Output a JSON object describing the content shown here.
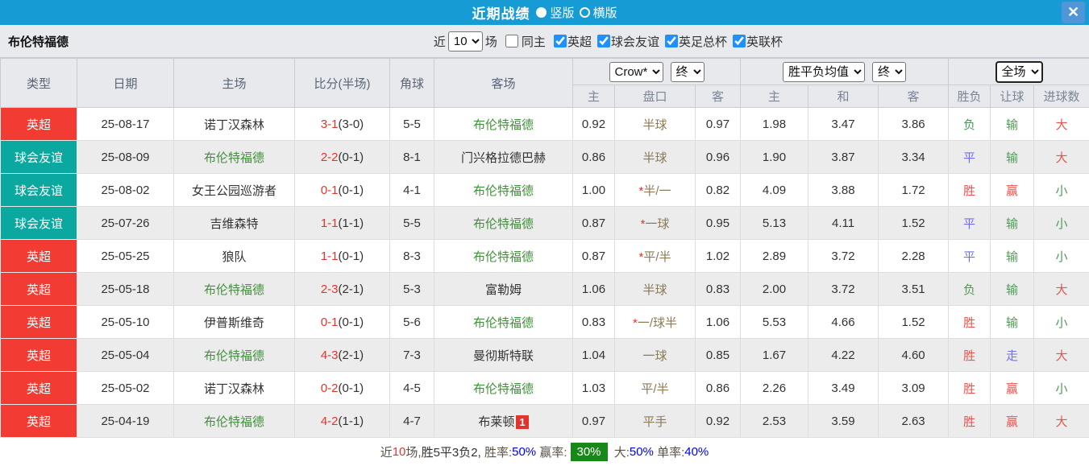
{
  "palette": {
    "titlebar_bg": "#169BD5",
    "close_btn_bg": "#4E96D8",
    "type_colors": {
      "epl": "#F13B33",
      "friendly": "#0AA89E"
    },
    "team_highlight_green": "#41903B",
    "score_red": "#E3342B",
    "result_red": "#E9534E",
    "result_green": "#4E9B57",
    "result_blue": "#7070EE",
    "odds_col_bg": "#FBF6EB",
    "avg_col_bg": "#EBF4F9",
    "footer_badge_green": "#188918",
    "footer_pct_blue": "#0000EE"
  },
  "titlebar": {
    "title": "近期战绩",
    "close_icon": "✕",
    "layout_options": [
      {
        "label": "竖版",
        "selected": true
      },
      {
        "label": "横版",
        "selected": false
      }
    ]
  },
  "toolbar": {
    "team": "布伦特福德",
    "recent_label": "近",
    "recent_value": "10",
    "matches_label": "场",
    "same_home": {
      "label": "同主",
      "checked": false
    },
    "leagues": [
      {
        "label": "英超",
        "checked": true
      },
      {
        "label": "球会友谊",
        "checked": true
      },
      {
        "label": "英足总杯",
        "checked": true
      },
      {
        "label": "英联杯",
        "checked": true
      }
    ]
  },
  "table": {
    "left_headers": [
      "类型",
      "日期",
      "主场",
      "比分(半场)",
      "角球",
      "客场"
    ],
    "odds_group": {
      "bookmaker": "Crow*",
      "time": "终",
      "subheaders": [
        "主",
        "盘口",
        "客"
      ]
    },
    "avg_group": {
      "name": "胜平负均值",
      "time": "终",
      "subheaders": [
        "主",
        "和",
        "客"
      ]
    },
    "result_group": {
      "scope": "全场",
      "subheaders": [
        "胜负",
        "让球",
        "进球数"
      ]
    },
    "rows": [
      {
        "type": "英超",
        "type_key": "epl",
        "date": "25-08-17",
        "home": "诺丁汉森林",
        "home_team": false,
        "score": "3-1",
        "half": "(3-0)",
        "corner": "5-5",
        "away": "布伦特福德",
        "away_team": true,
        "away_badge": null,
        "odds_home": "0.92",
        "handicap": "半球",
        "handicap_star": false,
        "odds_away": "0.97",
        "avg_home": "1.98",
        "avg_draw": "3.47",
        "avg_away": "3.86",
        "result": "负",
        "result_key": "green",
        "let_result": "输",
        "let_key": "green",
        "goals": "大",
        "goals_key": "red"
      },
      {
        "type": "球会友谊",
        "type_key": "friendly",
        "date": "25-08-09",
        "home": "布伦特福德",
        "home_team": true,
        "score": "2-2",
        "half": "(0-1)",
        "corner": "8-1",
        "away": "门兴格拉德巴赫",
        "away_team": false,
        "away_badge": null,
        "odds_home": "0.86",
        "handicap": "半球",
        "handicap_star": false,
        "odds_away": "0.96",
        "avg_home": "1.90",
        "avg_draw": "3.87",
        "avg_away": "3.34",
        "result": "平",
        "result_key": "blue",
        "let_result": "输",
        "let_key": "green",
        "goals": "大",
        "goals_key": "red"
      },
      {
        "type": "球会友谊",
        "type_key": "friendly",
        "date": "25-08-02",
        "home": "女王公园巡游者",
        "home_team": false,
        "score": "0-1",
        "half": "(0-1)",
        "corner": "4-1",
        "away": "布伦特福德",
        "away_team": true,
        "away_badge": null,
        "odds_home": "1.00",
        "handicap": "半/一",
        "handicap_star": true,
        "odds_away": "0.82",
        "avg_home": "4.09",
        "avg_draw": "3.88",
        "avg_away": "1.72",
        "result": "胜",
        "result_key": "red",
        "let_result": "赢",
        "let_key": "red",
        "goals": "小",
        "goals_key": "green"
      },
      {
        "type": "球会友谊",
        "type_key": "friendly",
        "date": "25-07-26",
        "home": "吉维森特",
        "home_team": false,
        "score": "1-1",
        "half": "(1-1)",
        "corner": "5-5",
        "away": "布伦特福德",
        "away_team": true,
        "away_badge": null,
        "odds_home": "0.87",
        "handicap": "一球",
        "handicap_star": true,
        "odds_away": "0.95",
        "avg_home": "5.13",
        "avg_draw": "4.11",
        "avg_away": "1.52",
        "result": "平",
        "result_key": "blue",
        "let_result": "输",
        "let_key": "green",
        "goals": "小",
        "goals_key": "green"
      },
      {
        "type": "英超",
        "type_key": "epl",
        "date": "25-05-25",
        "home": "狼队",
        "home_team": false,
        "score": "1-1",
        "half": "(0-1)",
        "corner": "8-3",
        "away": "布伦特福德",
        "away_team": true,
        "away_badge": null,
        "odds_home": "0.87",
        "handicap": "平/半",
        "handicap_star": true,
        "odds_away": "1.02",
        "avg_home": "2.89",
        "avg_draw": "3.72",
        "avg_away": "2.28",
        "result": "平",
        "result_key": "blue",
        "let_result": "输",
        "let_key": "green",
        "goals": "小",
        "goals_key": "green"
      },
      {
        "type": "英超",
        "type_key": "epl",
        "date": "25-05-18",
        "home": "布伦特福德",
        "home_team": true,
        "score": "2-3",
        "half": "(2-1)",
        "corner": "5-3",
        "away": "富勒姆",
        "away_team": false,
        "away_badge": null,
        "odds_home": "1.06",
        "handicap": "半球",
        "handicap_star": false,
        "odds_away": "0.83",
        "avg_home": "2.00",
        "avg_draw": "3.72",
        "avg_away": "3.51",
        "result": "负",
        "result_key": "green",
        "let_result": "输",
        "let_key": "green",
        "goals": "大",
        "goals_key": "red"
      },
      {
        "type": "英超",
        "type_key": "epl",
        "date": "25-05-10",
        "home": "伊普斯维奇",
        "home_team": false,
        "score": "0-1",
        "half": "(0-1)",
        "corner": "5-6",
        "away": "布伦特福德",
        "away_team": true,
        "away_badge": null,
        "odds_home": "0.83",
        "handicap": "一/球半",
        "handicap_star": true,
        "odds_away": "1.06",
        "avg_home": "5.53",
        "avg_draw": "4.66",
        "avg_away": "1.52",
        "result": "胜",
        "result_key": "red",
        "let_result": "输",
        "let_key": "green",
        "goals": "小",
        "goals_key": "green"
      },
      {
        "type": "英超",
        "type_key": "epl",
        "date": "25-05-04",
        "home": "布伦特福德",
        "home_team": true,
        "score": "4-3",
        "half": "(2-1)",
        "corner": "7-3",
        "away": "曼彻斯特联",
        "away_team": false,
        "away_badge": null,
        "odds_home": "1.04",
        "handicap": "一球",
        "handicap_star": false,
        "odds_away": "0.85",
        "avg_home": "1.67",
        "avg_draw": "4.22",
        "avg_away": "4.60",
        "result": "胜",
        "result_key": "red",
        "let_result": "走",
        "let_key": "blue",
        "goals": "大",
        "goals_key": "red"
      },
      {
        "type": "英超",
        "type_key": "epl",
        "date": "25-05-02",
        "home": "诺丁汉森林",
        "home_team": false,
        "score": "0-2",
        "half": "(0-1)",
        "corner": "4-5",
        "away": "布伦特福德",
        "away_team": true,
        "away_badge": null,
        "odds_home": "1.03",
        "handicap": "平/半",
        "handicap_star": false,
        "odds_away": "0.86",
        "avg_home": "2.26",
        "avg_draw": "3.49",
        "avg_away": "3.09",
        "result": "胜",
        "result_key": "red",
        "let_result": "赢",
        "let_key": "red",
        "goals": "小",
        "goals_key": "green"
      },
      {
        "type": "英超",
        "type_key": "epl",
        "date": "25-04-19",
        "home": "布伦特福德",
        "home_team": true,
        "score": "4-2",
        "half": "(1-1)",
        "corner": "4-7",
        "away": "布莱顿",
        "away_team": false,
        "away_badge": "1",
        "odds_home": "0.97",
        "handicap": "平手",
        "handicap_star": false,
        "odds_away": "0.92",
        "avg_home": "2.53",
        "avg_draw": "3.59",
        "avg_away": "2.63",
        "result": "胜",
        "result_key": "red",
        "let_result": "赢",
        "let_key": "red",
        "goals": "大",
        "goals_key": "red"
      }
    ]
  },
  "footer": {
    "segments": [
      {
        "text": "近",
        "key": "dim"
      },
      {
        "text": "10",
        "key": "red"
      },
      {
        "text": "场,",
        "key": "dim"
      },
      {
        "text": "胜5平3负2, ",
        "key": "dark"
      },
      {
        "text": "胜率:",
        "key": "dim"
      },
      {
        "text": "50%",
        "key": "blue"
      },
      {
        "text": " 赢率:",
        "key": "dim"
      },
      {
        "text": "30%",
        "key": "greenbadge"
      },
      {
        "text": " 大:",
        "key": "dim"
      },
      {
        "text": "50%",
        "key": "blue"
      },
      {
        "text": " 单率:",
        "key": "dim"
      },
      {
        "text": "40%",
        "key": "blue"
      }
    ]
  }
}
